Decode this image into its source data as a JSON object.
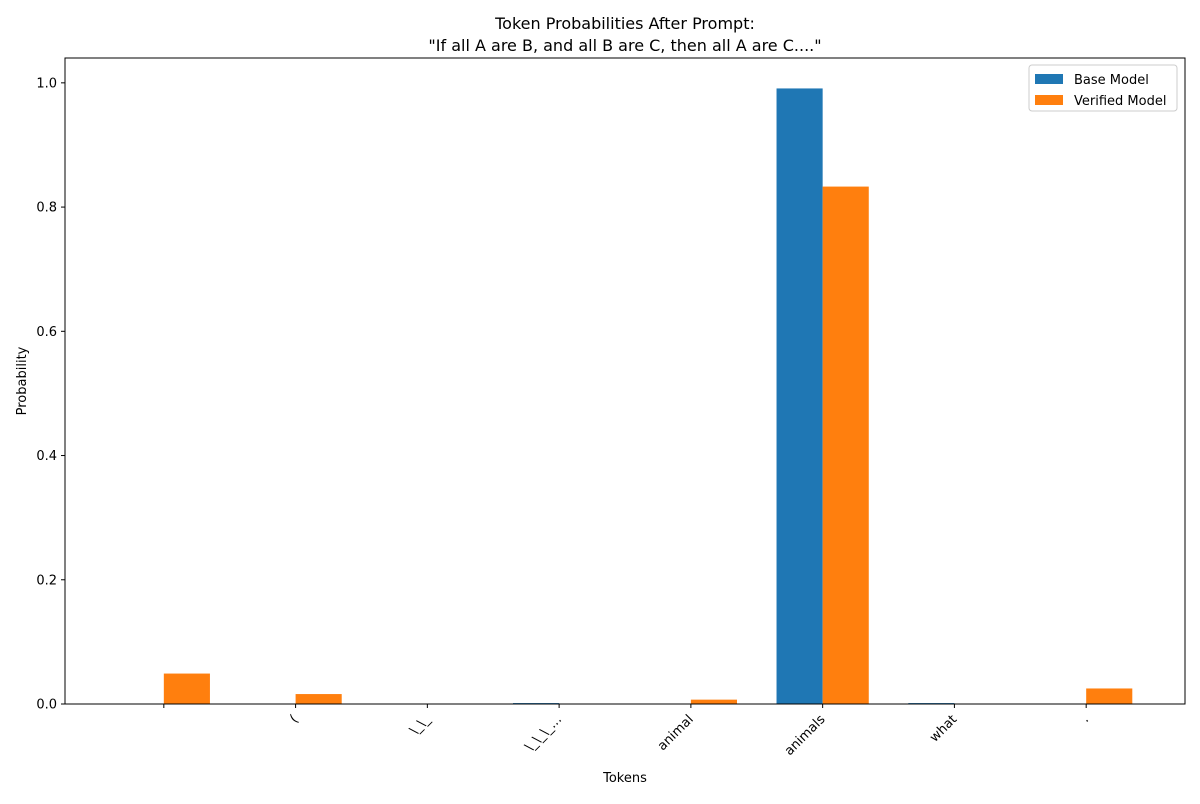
{
  "chart_data": {
    "type": "bar",
    "title": "Token Probabilities After Prompt:\n\"If all A are B, and all B are C, then all A are C....\"",
    "xlabel": "Tokens",
    "ylabel": "Probability",
    "categories": [
      "",
      "(",
      "\\_\\_",
      "\\_\\_\\_...",
      "animal",
      "animals",
      "what",
      "."
    ],
    "series": [
      {
        "name": "Base Model",
        "color": "#1f77b4",
        "values": [
          0.0,
          0.0,
          0.0,
          0.0015,
          0.0,
          0.991,
          0.0015,
          0.0
        ]
      },
      {
        "name": "Verified Model",
        "color": "#ff7f0e",
        "values": [
          0.049,
          0.016,
          0.0,
          0.0,
          0.007,
          0.833,
          0.0,
          0.025
        ]
      }
    ],
    "ylim": [
      0,
      1.04
    ],
    "yticks": [
      0.0,
      0.2,
      0.4,
      0.6,
      0.8,
      1.0
    ],
    "ytick_labels": [
      "0.0",
      "0.2",
      "0.4",
      "0.6",
      "0.8",
      "1.0"
    ],
    "grid": false,
    "legend_position": "top-right"
  }
}
